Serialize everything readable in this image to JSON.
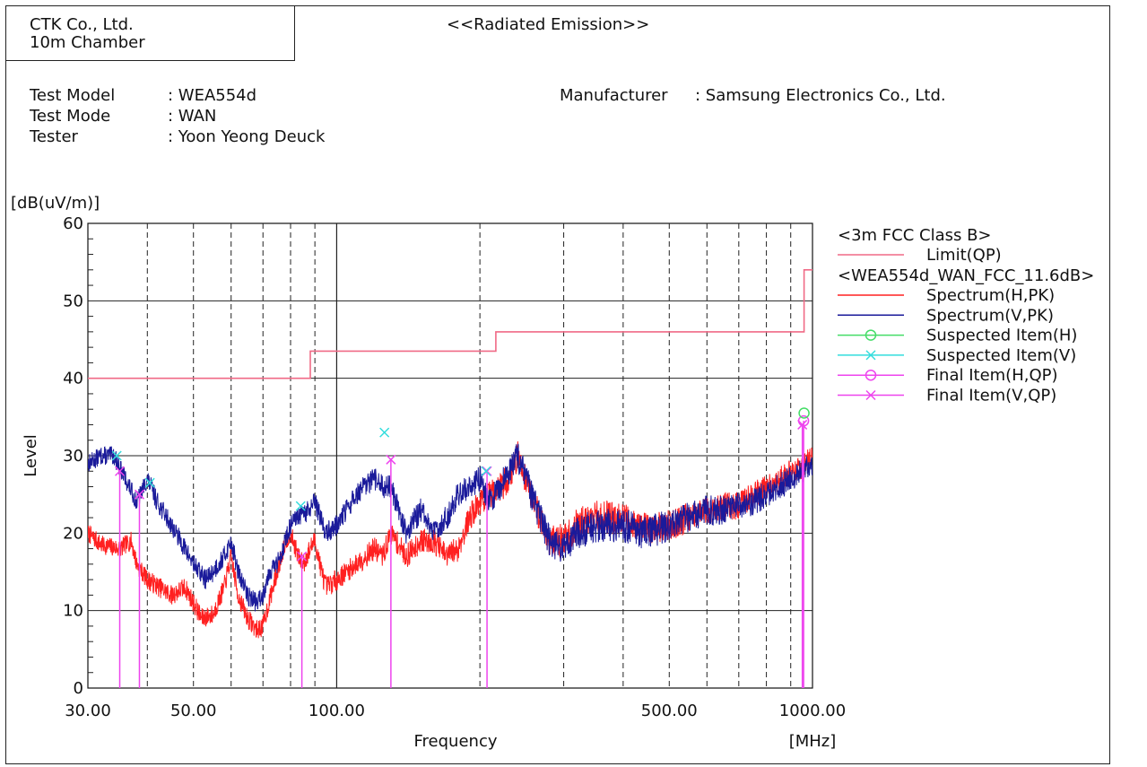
{
  "header": {
    "company": "CTK Co., Ltd.",
    "site": "10m Chamber",
    "title": "<<Radiated Emission>>"
  },
  "info": {
    "rows": [
      {
        "label": "Test Model",
        "value": ": WEA554d"
      },
      {
        "label": "Test Mode",
        "value": ": WAN"
      },
      {
        "label": "Tester",
        "value": ": Yoon Yeong Deuck"
      }
    ],
    "manufacturer_label": "Manufacturer",
    "manufacturer_value": ": Samsung Electronics Co., Ltd."
  },
  "chart_data": {
    "type": "line",
    "title": "",
    "xlabel": "Frequency",
    "ylabel": "Level",
    "yunit": "[dB(uV/m)]",
    "xunit": "[MHz]",
    "x_scale": "log",
    "xlim": [
      30,
      1000
    ],
    "ylim": [
      0,
      60
    ],
    "yticks": [
      0,
      10,
      20,
      30,
      40,
      50,
      60
    ],
    "xtick_labels": [
      {
        "value": 30,
        "label": "30.00"
      },
      {
        "value": 50,
        "label": "50.00"
      },
      {
        "value": 100,
        "label": "100.00"
      },
      {
        "value": 500,
        "label": "500.00"
      },
      {
        "value": 1000,
        "label": "1000.00"
      }
    ],
    "x_gridlines_dashed": [
      40,
      50,
      60,
      70,
      80,
      90,
      200,
      300,
      400,
      500,
      600,
      700,
      800,
      900
    ],
    "x_gridlines_solid": [
      100
    ],
    "grid": true,
    "legend_position": "right",
    "legend": {
      "group1": "<3m FCC Class B>",
      "group2": "<WEA554d_WAN_FCC_11.6dB>",
      "items": [
        {
          "label": "Limit(QP)",
          "color": "#f06a86",
          "marker": "none",
          "group": 1
        },
        {
          "label": "Spectrum(H,PK)",
          "color": "#ff2020",
          "marker": "none",
          "group": 2
        },
        {
          "label": "Spectrum(V,PK)",
          "color": "#1a1a9a",
          "marker": "none",
          "group": 2
        },
        {
          "label": "Suspected Item(H)",
          "color": "#44dd66",
          "marker": "circle",
          "group": 2
        },
        {
          "label": "Suspected Item(V)",
          "color": "#33dddd",
          "marker": "x",
          "group": 2
        },
        {
          "label": "Final Item(H,QP)",
          "color": "#ee44ee",
          "marker": "circle",
          "group": 2
        },
        {
          "label": "Final Item(V,QP)",
          "color": "#ee44ee",
          "marker": "x",
          "group": 2
        }
      ]
    },
    "limit_qp": {
      "points": [
        [
          30,
          40
        ],
        [
          88,
          40
        ],
        [
          88,
          43.5
        ],
        [
          216,
          43.5
        ],
        [
          216,
          46
        ],
        [
          960,
          46
        ],
        [
          960,
          54
        ],
        [
          1000,
          54
        ]
      ]
    },
    "spectrum_h_pk": {
      "anchors": [
        [
          30,
          20
        ],
        [
          32,
          18.5
        ],
        [
          35,
          18
        ],
        [
          37,
          19
        ],
        [
          38,
          16
        ],
        [
          40,
          14
        ],
        [
          45,
          12
        ],
        [
          48,
          13
        ],
        [
          50,
          11
        ],
        [
          52,
          9
        ],
        [
          55,
          9.5
        ],
        [
          58,
          13
        ],
        [
          60,
          17
        ],
        [
          62,
          12
        ],
        [
          65,
          9
        ],
        [
          68,
          7.5
        ],
        [
          70,
          8
        ],
        [
          72,
          11
        ],
        [
          75,
          15
        ],
        [
          78,
          19
        ],
        [
          80,
          20
        ],
        [
          83,
          17
        ],
        [
          85,
          16
        ],
        [
          88,
          18
        ],
        [
          90,
          19
        ],
        [
          93,
          15
        ],
        [
          95,
          13
        ],
        [
          100,
          14
        ],
        [
          110,
          16
        ],
        [
          120,
          18
        ],
        [
          125,
          17
        ],
        [
          130,
          20
        ],
        [
          140,
          17
        ],
        [
          150,
          19
        ],
        [
          160,
          19
        ],
        [
          170,
          17
        ],
        [
          180,
          18
        ],
        [
          190,
          22
        ],
        [
          200,
          24
        ],
        [
          210,
          25
        ],
        [
          220,
          26
        ],
        [
          230,
          27
        ],
        [
          240,
          30
        ],
        [
          250,
          27
        ],
        [
          260,
          24
        ],
        [
          280,
          19
        ],
        [
          300,
          19
        ],
        [
          320,
          21
        ],
        [
          350,
          22
        ],
        [
          400,
          22
        ],
        [
          450,
          20.5
        ],
        [
          500,
          21
        ],
        [
          550,
          22
        ],
        [
          600,
          23
        ],
        [
          650,
          23.5
        ],
        [
          700,
          23.5
        ],
        [
          750,
          25
        ],
        [
          800,
          26
        ],
        [
          850,
          27
        ],
        [
          900,
          28
        ],
        [
          950,
          28.5
        ],
        [
          1000,
          30
        ]
      ],
      "noise": [
        1.2,
        1.2,
        1.2,
        1.2,
        1.2,
        1.3,
        1.3,
        1.3,
        1.3,
        1.3,
        1.3,
        1.3,
        1.3,
        1.3,
        1.3,
        1.3,
        1.3,
        1.3,
        1.3,
        1.3,
        1.3,
        1.3,
        1.4,
        1.4,
        1.4,
        1.4,
        1.4,
        1.4,
        1.5,
        1.5,
        1.5,
        1.5,
        1.6,
        1.6,
        1.6,
        1.7,
        1.7,
        1.8,
        1.8,
        1.8,
        2,
        2,
        2,
        2,
        2,
        2.2,
        2.2,
        2.2,
        2.2,
        2,
        2,
        2,
        1.8,
        1.8,
        1.8,
        1.7,
        1.7,
        1.6,
        1.6,
        1.5,
        1.5,
        1.4
      ]
    },
    "spectrum_v_pk": {
      "anchors": [
        [
          30,
          29
        ],
        [
          32,
          30
        ],
        [
          34,
          30
        ],
        [
          36,
          27
        ],
        [
          38,
          24
        ],
        [
          40,
          27
        ],
        [
          42,
          24
        ],
        [
          45,
          21
        ],
        [
          48,
          18
        ],
        [
          50,
          16
        ],
        [
          53,
          14
        ],
        [
          55,
          15
        ],
        [
          58,
          17
        ],
        [
          60,
          19
        ],
        [
          62,
          15
        ],
        [
          65,
          12
        ],
        [
          68,
          11
        ],
        [
          70,
          12
        ],
        [
          72,
          15
        ],
        [
          75,
          16
        ],
        [
          78,
          19
        ],
        [
          80,
          21
        ],
        [
          83,
          22
        ],
        [
          88,
          23
        ],
        [
          90,
          24
        ],
        [
          95,
          20
        ],
        [
          100,
          21
        ],
        [
          105,
          23
        ],
        [
          110,
          25
        ],
        [
          120,
          27
        ],
        [
          125,
          26
        ],
        [
          130,
          26
        ],
        [
          140,
          20
        ],
        [
          150,
          23
        ],
        [
          160,
          20
        ],
        [
          170,
          22
        ],
        [
          180,
          25
        ],
        [
          200,
          27
        ],
        [
          210,
          24
        ],
        [
          220,
          26
        ],
        [
          240,
          30
        ],
        [
          250,
          27
        ],
        [
          260,
          24
        ],
        [
          280,
          19
        ],
        [
          300,
          18
        ],
        [
          320,
          20
        ],
        [
          350,
          21
        ],
        [
          400,
          21
        ],
        [
          450,
          20
        ],
        [
          500,
          21
        ],
        [
          550,
          22
        ],
        [
          600,
          23
        ],
        [
          650,
          23
        ],
        [
          700,
          23.5
        ],
        [
          750,
          24
        ],
        [
          800,
          25
        ],
        [
          850,
          26
        ],
        [
          900,
          27
        ],
        [
          950,
          28
        ],
        [
          1000,
          29
        ]
      ],
      "noise": [
        1.2,
        1.2,
        1.2,
        1.2,
        1.2,
        1.3,
        1.3,
        1.3,
        1.3,
        1.3,
        1.3,
        1.3,
        1.3,
        1.3,
        1.3,
        1.3,
        1.3,
        1.3,
        1.3,
        1.3,
        1.3,
        1.3,
        1.4,
        1.4,
        1.4,
        1.4,
        1.4,
        1.4,
        1.5,
        1.5,
        1.5,
        1.5,
        1.6,
        1.6,
        1.6,
        1.7,
        1.7,
        1.8,
        1.8,
        1.8,
        2,
        2,
        2,
        2,
        2,
        2.2,
        2.2,
        2.2,
        2.2,
        2,
        2,
        2,
        1.8,
        1.8,
        1.8,
        1.7,
        1.7,
        1.6,
        1.6,
        1.5
      ]
    },
    "suspected_h": [
      {
        "x": 960,
        "y": 35.5
      }
    ],
    "suspected_v": [
      {
        "x": 34.5,
        "y": 30
      },
      {
        "x": 40.5,
        "y": 26.5
      },
      {
        "x": 84,
        "y": 23.5
      },
      {
        "x": 126,
        "y": 33
      },
      {
        "x": 206,
        "y": 28
      }
    ],
    "final_h": [
      {
        "x": 958,
        "y": 34.5
      }
    ],
    "final_v": [
      {
        "x": 35,
        "y": 28
      },
      {
        "x": 38.5,
        "y": 25
      },
      {
        "x": 84.5,
        "y": 17
      },
      {
        "x": 130,
        "y": 29.5
      },
      {
        "x": 207,
        "y": 28
      },
      {
        "x": 952,
        "y": 34
      }
    ]
  },
  "colors": {
    "limit": "#f06a86",
    "spectrum_h": "#ff2020",
    "spectrum_v": "#1a1a9a",
    "suspected_h": "#44dd66",
    "suspected_v": "#33dddd",
    "final": "#ee44ee"
  }
}
